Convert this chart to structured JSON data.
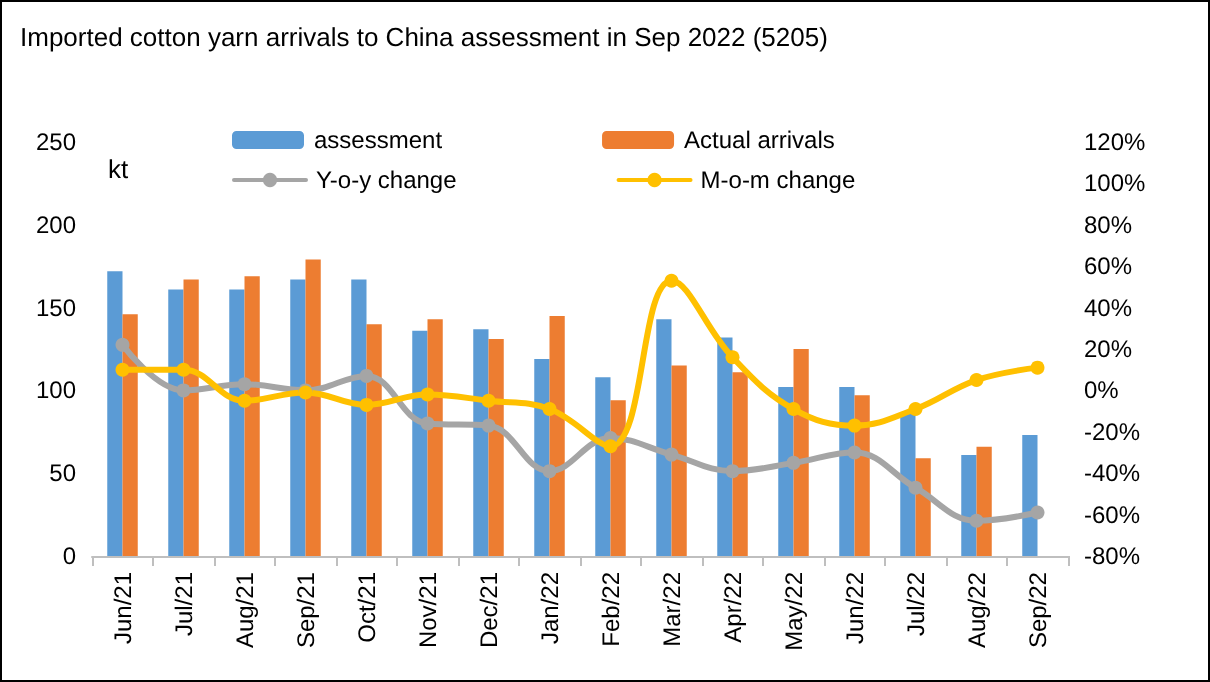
{
  "chart_data": {
    "type": "bar",
    "title": "Imported cotton yarn arrivals to China assessment in Sep 2022 (5205)",
    "ylabel": "kt",
    "categories": [
      "Jun/21",
      "Jul/21",
      "Aug/21",
      "Sep/21",
      "Oct/21",
      "Nov/21",
      "Dec/21",
      "Jan/22",
      "Feb/22",
      "Mar/22",
      "Apr/22",
      "May/22",
      "Jun/22",
      "Jul/22",
      "Aug/22",
      "Sep/22"
    ],
    "series": [
      {
        "name": "assessment",
        "color": "#5b9bd5",
        "values": [
          172,
          161,
          161,
          167,
          167,
          136,
          137,
          119,
          108,
          143,
          132,
          102,
          102,
          87,
          61,
          73
        ]
      },
      {
        "name": "Actual arrivals",
        "color": "#ed7d31",
        "values": [
          146,
          167,
          169,
          179,
          140,
          143,
          131,
          145,
          94,
          115,
          111,
          125,
          97,
          59,
          66,
          null
        ]
      },
      {
        "name": "Y-o-y change",
        "type": "line",
        "axis": "y2",
        "color": "#a5a5a5",
        "values": [
          22,
          0,
          3,
          0,
          7,
          -16,
          -17,
          -39,
          -23,
          -31,
          -39,
          -35,
          -30,
          -47,
          -63,
          -59
        ]
      },
      {
        "name": "M-o-m change",
        "type": "line",
        "axis": "y2",
        "color": "#ffc000",
        "values": [
          10,
          10,
          -5,
          -1,
          -7,
          -2,
          -5,
          -9,
          -27,
          53,
          16,
          -9,
          -17,
          -9,
          5,
          11
        ]
      }
    ],
    "ylim": [
      0,
      250
    ],
    "yticks": [
      0,
      50,
      100,
      150,
      200,
      250
    ],
    "y2lim": [
      -80,
      120
    ],
    "y2ticks": [
      {
        "value": -80,
        "label": "-80%"
      },
      {
        "value": -60,
        "label": "-60%"
      },
      {
        "value": -40,
        "label": "-40%"
      },
      {
        "value": -20,
        "label": "-20%"
      },
      {
        "value": 0,
        "label": "0%"
      },
      {
        "value": 20,
        "label": "20%"
      },
      {
        "value": 40,
        "label": "40%"
      },
      {
        "value": 60,
        "label": "60%"
      },
      {
        "value": 80,
        "label": "80%"
      },
      {
        "value": 100,
        "label": "100%"
      },
      {
        "value": 120,
        "label": "120%"
      }
    ],
    "grid": false,
    "legend": "top",
    "marker": "circle",
    "line_style": "solid"
  }
}
